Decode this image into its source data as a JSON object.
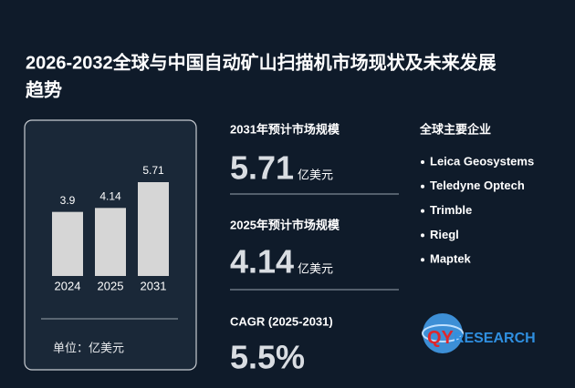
{
  "title_lines": [
    "2026-2032全球与中国自动矿山扫描机市场现状及未来发展",
    "趋势"
  ],
  "chart_data": {
    "type": "bar",
    "categories": [
      "2024",
      "2025",
      "2031"
    ],
    "values": [
      3.9,
      4.14,
      5.71
    ],
    "color": "#d6d6d6",
    "unit_label": "单位：亿美元"
  },
  "stats": [
    {
      "label": "2031年预计市场规模",
      "value": "5.71",
      "unit": "亿美元"
    },
    {
      "label": "2025年预计市场规模",
      "value": "4.14",
      "unit": "亿美元"
    },
    {
      "label": "CAGR (2025-2031)",
      "value": "5.5%"
    }
  ],
  "companies": {
    "heading": "全球主要企业",
    "items": [
      "Leica Geosystems",
      "Teledyne Optech",
      "Trimble",
      "Riegl",
      "Maptek"
    ]
  },
  "logo": {
    "accent": "QY",
    "rest": "RESEARCH"
  }
}
